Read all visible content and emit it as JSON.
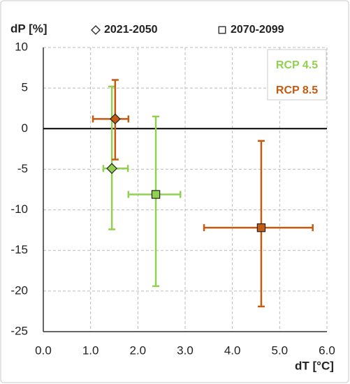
{
  "chart_data": {
    "type": "scatter",
    "xlabel": "dT [°C]",
    "ylabel": "dP [%]",
    "periods": [
      {
        "name": "2021-2050",
        "marker": "diamond"
      },
      {
        "name": "2070-2099",
        "marker": "square"
      }
    ],
    "series": [
      {
        "name": "RCP 4.5",
        "color": "#92d050",
        "x": [
          1.45,
          2.38
        ],
        "values": [
          -4.9,
          -8.1
        ],
        "x_low": [
          1.27,
          1.8
        ],
        "x_high": [
          1.79,
          2.9
        ],
        "y_low": [
          -12.4,
          -19.4
        ],
        "y_high": [
          5.2,
          1.5
        ]
      },
      {
        "name": "RCP 8.5",
        "color": "#c55a11",
        "x": [
          1.52,
          4.61
        ],
        "values": [
          1.2,
          -12.2
        ],
        "x_low": [
          1.05,
          3.4
        ],
        "x_high": [
          1.8,
          5.7
        ],
        "y_low": [
          -3.8,
          -21.9
        ],
        "y_high": [
          6.0,
          -1.5
        ]
      }
    ],
    "xlim": [
      0,
      6
    ],
    "xticks": [
      {
        "value": 0,
        "label": "0.0"
      },
      {
        "value": 1,
        "label": "1.0"
      },
      {
        "value": 2,
        "label": "2.0"
      },
      {
        "value": 3,
        "label": "3.0"
      },
      {
        "value": 4,
        "label": "4.0"
      },
      {
        "value": 5,
        "label": "5.0"
      },
      {
        "value": 6,
        "label": "6.0"
      }
    ],
    "ylim": [
      -25,
      10
    ],
    "yticks": [
      -25,
      -20,
      -15,
      -10,
      -5,
      0,
      5,
      10
    ],
    "grid": true
  }
}
